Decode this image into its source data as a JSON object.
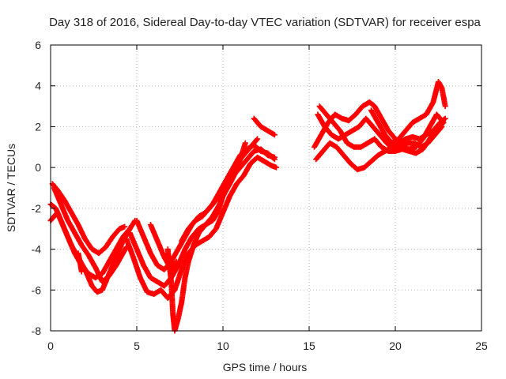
{
  "chart_data": {
    "type": "scatter",
    "title": "Day 318 of 2016, Sidereal Day-to-day VTEC variation (SDTVAR) for receiver espa",
    "xlabel": "GPS time / hours",
    "ylabel": "SDTVAR / TECUs",
    "xlim": [
      0,
      25
    ],
    "ylim": [
      -8,
      6
    ],
    "xticks": [
      0,
      5,
      10,
      15,
      20,
      25
    ],
    "yticks": [
      -8,
      -6,
      -4,
      -2,
      0,
      2,
      4,
      6
    ],
    "grid": true,
    "marker": "+",
    "series": [
      {
        "color": "#ff0000",
        "tracks": [
          [
            [
              0.0,
              -2.6
            ],
            [
              0.4,
              -2.2
            ],
            [
              0.8,
              -3.0
            ],
            [
              1.2,
              -3.8
            ],
            [
              1.6,
              -4.4
            ],
            [
              2.0,
              -5.0
            ],
            [
              2.4,
              -5.8
            ],
            [
              2.7,
              -6.1
            ],
            [
              3.0,
              -6.0
            ],
            [
              3.4,
              -5.2
            ],
            [
              3.8,
              -4.4
            ],
            [
              4.2,
              -3.6
            ],
            [
              4.6,
              -3.0
            ],
            [
              4.9,
              -2.6
            ]
          ],
          [
            [
              0.1,
              -0.8
            ],
            [
              0.4,
              -1.1
            ],
            [
              0.8,
              -1.6
            ],
            [
              1.2,
              -2.2
            ],
            [
              1.6,
              -2.8
            ],
            [
              2.0,
              -3.5
            ],
            [
              2.4,
              -4.0
            ],
            [
              2.8,
              -4.2
            ],
            [
              3.2,
              -3.9
            ],
            [
              3.6,
              -3.4
            ],
            [
              4.0,
              -3.0
            ],
            [
              4.3,
              -2.9
            ]
          ],
          [
            [
              0.0,
              -1.8
            ],
            [
              0.3,
              -2.0
            ],
            [
              0.6,
              -2.6
            ],
            [
              1.0,
              -3.4
            ],
            [
              1.4,
              -4.2
            ],
            [
              1.8,
              -4.8
            ],
            [
              2.2,
              -5.2
            ],
            [
              2.6,
              -5.4
            ],
            [
              3.0,
              -5.2
            ],
            [
              3.4,
              -4.6
            ],
            [
              3.8,
              -4.0
            ],
            [
              4.2,
              -3.4
            ],
            [
              4.6,
              -3.0
            ]
          ],
          [
            [
              0.2,
              -1.0
            ],
            [
              0.6,
              -1.8
            ],
            [
              1.0,
              -2.6
            ],
            [
              1.4,
              -3.2
            ],
            [
              1.8,
              -3.8
            ],
            [
              2.2,
              -4.3
            ],
            [
              2.6,
              -4.9
            ],
            [
              3.0,
              -5.6
            ],
            [
              3.4,
              -5.3
            ],
            [
              3.8,
              -4.8
            ],
            [
              4.2,
              -4.2
            ],
            [
              4.4,
              -3.9
            ]
          ],
          [
            [
              1.6,
              -4.2
            ],
            [
              1.7,
              -4.6
            ],
            [
              1.8,
              -5.1
            ]
          ],
          [
            [
              4.4,
              -3.5
            ],
            [
              4.8,
              -4.4
            ],
            [
              5.2,
              -5.4
            ],
            [
              5.6,
              -6.1
            ],
            [
              6.0,
              -6.2
            ],
            [
              6.4,
              -6.0
            ],
            [
              6.8,
              -6.4
            ],
            [
              7.2,
              -6.0
            ],
            [
              7.6,
              -5.0
            ],
            [
              8.0,
              -4.2
            ],
            [
              8.4,
              -3.8
            ],
            [
              8.8,
              -3.6
            ],
            [
              9.2,
              -3.4
            ],
            [
              9.6,
              -3.0
            ],
            [
              10.0,
              -2.2
            ],
            [
              10.4,
              -1.4
            ],
            [
              10.8,
              -0.8
            ],
            [
              11.2,
              -0.4
            ],
            [
              11.6,
              0.2
            ],
            [
              12.0,
              0.5
            ],
            [
              12.4,
              0.3
            ],
            [
              12.8,
              0.1
            ],
            [
              13.1,
              0.0
            ]
          ],
          [
            [
              4.6,
              -3.2
            ],
            [
              5.0,
              -4.0
            ],
            [
              5.4,
              -4.8
            ],
            [
              5.8,
              -5.4
            ],
            [
              6.2,
              -5.6
            ],
            [
              6.6,
              -5.8
            ],
            [
              7.0,
              -5.4
            ],
            [
              7.4,
              -4.8
            ],
            [
              7.8,
              -4.0
            ],
            [
              8.2,
              -3.4
            ],
            [
              8.6,
              -3.0
            ],
            [
              9.0,
              -2.8
            ],
            [
              9.4,
              -2.4
            ],
            [
              9.8,
              -1.8
            ],
            [
              10.2,
              -1.0
            ],
            [
              10.6,
              -0.4
            ],
            [
              11.0,
              0.0
            ],
            [
              11.4,
              0.4
            ],
            [
              11.8,
              0.8
            ],
            [
              12.2,
              0.9
            ],
            [
              12.6,
              0.6
            ],
            [
              13.0,
              0.5
            ]
          ],
          [
            [
              5.0,
              -2.6
            ],
            [
              5.4,
              -3.4
            ],
            [
              5.8,
              -4.2
            ],
            [
              6.2,
              -4.8
            ],
            [
              6.6,
              -5.0
            ],
            [
              7.0,
              -4.6
            ],
            [
              7.4,
              -4.0
            ],
            [
              7.8,
              -3.4
            ],
            [
              8.2,
              -2.8
            ],
            [
              8.6,
              -2.4
            ],
            [
              9.0,
              -2.2
            ],
            [
              9.4,
              -1.8
            ],
            [
              9.8,
              -1.2
            ],
            [
              10.2,
              -0.6
            ],
            [
              10.6,
              0.0
            ],
            [
              11.0,
              0.6
            ],
            [
              11.4,
              0.9
            ],
            [
              11.8,
              1.1
            ],
            [
              12.2,
              0.8
            ],
            [
              12.6,
              0.7
            ],
            [
              13.0,
              0.4
            ]
          ],
          [
            [
              5.8,
              -2.8
            ],
            [
              6.2,
              -3.6
            ],
            [
              6.6,
              -4.4
            ],
            [
              7.0,
              -5.0
            ],
            [
              7.3,
              -4.6
            ]
          ],
          [
            [
              6.8,
              -4.0
            ],
            [
              7.0,
              -5.6
            ],
            [
              7.1,
              -7.2
            ],
            [
              7.2,
              -8.0
            ],
            [
              7.4,
              -7.4
            ],
            [
              7.6,
              -6.6
            ],
            [
              7.8,
              -5.4
            ],
            [
              8.0,
              -4.6
            ],
            [
              8.3,
              -3.8
            ],
            [
              8.6,
              -3.2
            ],
            [
              9.0,
              -2.8
            ],
            [
              9.4,
              -2.6
            ],
            [
              9.7,
              -2.2
            ],
            [
              10.0,
              -1.4
            ],
            [
              10.4,
              -0.8
            ],
            [
              10.7,
              -0.3
            ],
            [
              11.0,
              0.4
            ],
            [
              11.3,
              1.2
            ]
          ],
          [
            [
              7.6,
              -3.6
            ],
            [
              8.0,
              -3.0
            ],
            [
              8.4,
              -2.6
            ],
            [
              8.8,
              -2.4
            ],
            [
              9.2,
              -2.0
            ],
            [
              9.6,
              -1.6
            ],
            [
              10.0,
              -1.0
            ],
            [
              10.4,
              -0.4
            ],
            [
              10.8,
              0.2
            ],
            [
              11.2,
              0.6
            ],
            [
              11.6,
              1.0
            ],
            [
              12.0,
              1.4
            ]
          ],
          [
            [
              11.8,
              2.4
            ],
            [
              12.2,
              2.0
            ],
            [
              12.6,
              1.8
            ],
            [
              13.0,
              1.6
            ]
          ],
          [
            [
              15.3,
              1.0
            ],
            [
              15.7,
              1.6
            ],
            [
              16.1,
              2.2
            ],
            [
              16.5,
              2.6
            ],
            [
              16.9,
              2.4
            ],
            [
              17.3,
              2.3
            ],
            [
              17.7,
              2.6
            ],
            [
              18.1,
              3.0
            ],
            [
              18.5,
              3.2
            ],
            [
              18.8,
              3.0
            ],
            [
              19.2,
              2.4
            ],
            [
              19.6,
              1.8
            ],
            [
              20.0,
              1.4
            ],
            [
              20.4,
              1.0
            ],
            [
              20.8,
              0.9
            ],
            [
              21.2,
              1.0
            ],
            [
              21.6,
              1.4
            ],
            [
              22.0,
              2.0
            ],
            [
              22.4,
              2.6
            ],
            [
              22.8,
              2.2
            ]
          ],
          [
            [
              15.4,
              0.4
            ],
            [
              15.8,
              0.8
            ],
            [
              16.2,
              1.2
            ],
            [
              16.6,
              1.0
            ],
            [
              17.0,
              0.6
            ],
            [
              17.4,
              0.2
            ],
            [
              17.8,
              -0.1
            ],
            [
              18.2,
              0.0
            ],
            [
              18.6,
              0.3
            ],
            [
              19.0,
              0.6
            ],
            [
              19.4,
              0.8
            ],
            [
              19.8,
              1.0
            ],
            [
              20.2,
              1.2
            ],
            [
              20.6,
              1.4
            ],
            [
              21.0,
              1.5
            ],
            [
              21.4,
              1.4
            ],
            [
              21.8,
              1.6
            ],
            [
              22.2,
              1.8
            ],
            [
              22.6,
              2.2
            ],
            [
              22.9,
              2.4
            ]
          ],
          [
            [
              15.5,
              2.6
            ],
            [
              15.9,
              2.0
            ],
            [
              16.3,
              1.6
            ],
            [
              16.7,
              1.4
            ],
            [
              17.1,
              1.6
            ],
            [
              17.5,
              1.8
            ],
            [
              17.9,
              2.0
            ],
            [
              18.3,
              2.4
            ],
            [
              18.7,
              2.0
            ],
            [
              19.1,
              1.6
            ],
            [
              19.5,
              1.2
            ],
            [
              19.9,
              0.9
            ],
            [
              20.3,
              1.0
            ],
            [
              20.7,
              1.2
            ],
            [
              21.1,
              1.2
            ],
            [
              21.5,
              1.0
            ],
            [
              21.9,
              1.2
            ],
            [
              22.3,
              1.6
            ],
            [
              22.7,
              2.0
            ]
          ],
          [
            [
              15.6,
              3.0
            ],
            [
              16.0,
              2.6
            ],
            [
              16.4,
              2.2
            ],
            [
              16.8,
              1.8
            ],
            [
              17.2,
              1.2
            ],
            [
              17.6,
              1.0
            ],
            [
              18.0,
              1.0
            ],
            [
              18.4,
              1.2
            ],
            [
              18.8,
              1.4
            ],
            [
              19.2,
              1.0
            ],
            [
              19.6,
              0.8
            ],
            [
              20.0,
              0.8
            ],
            [
              20.4,
              0.9
            ],
            [
              20.8,
              0.8
            ],
            [
              21.2,
              0.7
            ],
            [
              21.6,
              0.9
            ],
            [
              22.0,
              1.4
            ],
            [
              22.4,
              1.9
            ],
            [
              22.8,
              2.2
            ]
          ],
          [
            [
              18.6,
              2.8
            ],
            [
              19.0,
              2.2
            ],
            [
              19.4,
              1.6
            ],
            [
              19.8,
              1.2
            ],
            [
              20.2,
              1.4
            ],
            [
              20.6,
              1.8
            ],
            [
              21.0,
              2.2
            ],
            [
              21.4,
              2.4
            ],
            [
              21.8,
              2.6
            ],
            [
              22.2,
              3.2
            ],
            [
              22.5,
              4.2
            ],
            [
              22.7,
              3.9
            ],
            [
              22.9,
              3.0
            ]
          ]
        ]
      }
    ]
  },
  "plot_color": "#ff0000"
}
